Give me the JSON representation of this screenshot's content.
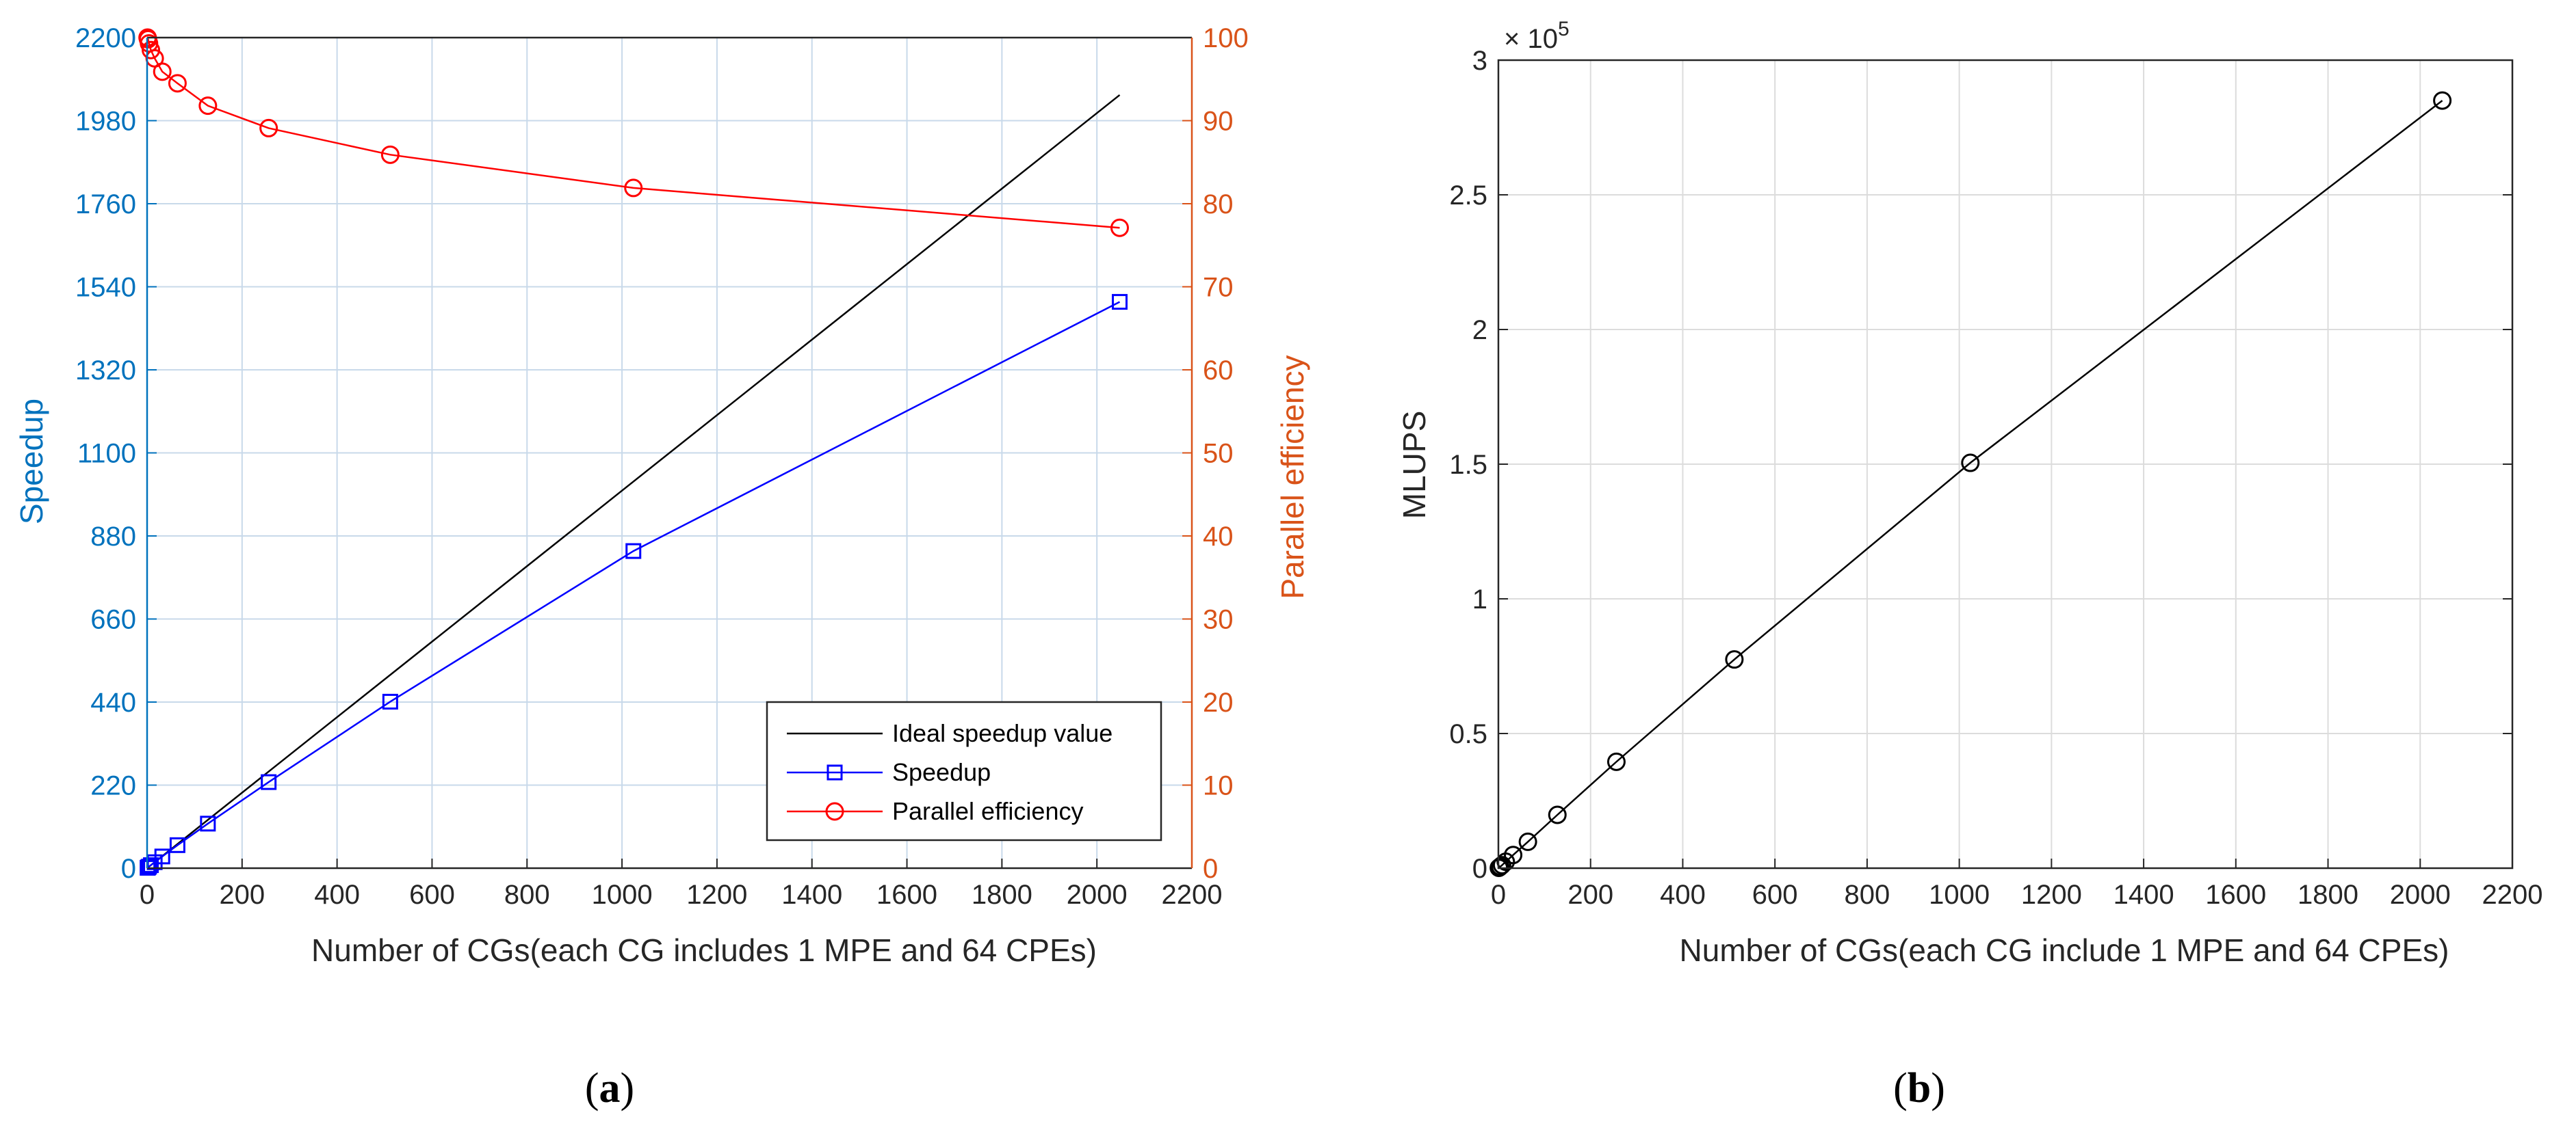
{
  "chart_data": [
    {
      "panel": "a",
      "type": "line",
      "panel_label_parts": [
        "(",
        "a",
        ")"
      ],
      "xlabel": "Number of CGs(each CG includes 1 MPE and 64 CPEs)",
      "ylabel": "Speedup",
      "y2label": "Parallel efficiency",
      "xlim": [
        0,
        2200
      ],
      "ylim": [
        0,
        2200
      ],
      "y2lim": [
        0,
        100
      ],
      "xticks": [
        0,
        200,
        400,
        600,
        800,
        1000,
        1200,
        1400,
        1600,
        1800,
        2000,
        2200
      ],
      "yticks": [
        0,
        220,
        440,
        660,
        880,
        1100,
        1320,
        1540,
        1760,
        1980,
        2200
      ],
      "y2ticks": [
        0,
        10,
        20,
        30,
        40,
        50,
        60,
        70,
        80,
        90,
        100
      ],
      "grid": true,
      "legend_position": "bottom-right",
      "series": [
        {
          "name": "Ideal speedup value",
          "axis": "left",
          "color": "#000000",
          "marker": "none",
          "x": [
            1,
            2048
          ],
          "y": [
            1,
            2048
          ]
        },
        {
          "name": "Speedup",
          "axis": "left",
          "color": "#0000ff",
          "marker": "square",
          "x": [
            1,
            2,
            4,
            8,
            16,
            32,
            64,
            128,
            256,
            512,
            1024,
            2048
          ],
          "y": [
            1,
            2,
            4,
            8,
            15.8,
            31,
            61,
            118,
            228,
            441,
            840,
            1500
          ]
        },
        {
          "name": "Parallel efficiency",
          "axis": "right",
          "color": "#ff0000",
          "marker": "circle",
          "x": [
            1,
            2,
            4,
            8,
            16,
            32,
            64,
            128,
            256,
            512,
            1024,
            2048
          ],
          "y": [
            100,
            99.8,
            99.3,
            98.5,
            97.5,
            95.9,
            94.5,
            91.8,
            89.1,
            85.9,
            81.9,
            77.1
          ]
        }
      ],
      "colors": {
        "left_axis": "#0072bd",
        "right_axis": "#d95319",
        "grid": "#c8d9ea"
      }
    },
    {
      "panel": "b",
      "type": "line",
      "panel_label_parts": [
        "(",
        "b",
        ")"
      ],
      "xlabel": "Number of CGs(each CG include 1 MPE and 64 CPEs)",
      "ylabel": "MLUPS",
      "xlim": [
        0,
        2200
      ],
      "ylim": [
        0,
        300000
      ],
      "xticks": [
        0,
        200,
        400,
        600,
        800,
        1000,
        1200,
        1400,
        1600,
        1800,
        2000,
        2200
      ],
      "yticks": [
        0,
        50000,
        100000,
        150000,
        200000,
        250000,
        300000
      ],
      "ytick_labels": [
        "0",
        "0.5",
        "1",
        "1.5",
        "2",
        "2.5",
        "3"
      ],
      "y_exponent_base": "× 10",
      "y_exponent_power": "5",
      "grid": true,
      "series": [
        {
          "name": "MLUPS",
          "color": "#000000",
          "marker": "circle",
          "x": [
            1,
            2,
            4,
            8,
            16,
            32,
            64,
            128,
            256,
            512,
            1024,
            2048
          ],
          "y": [
            140,
            280,
            560,
            1120,
            2400,
            4900,
            9800,
            19800,
            39500,
            77500,
            150500,
            285000
          ]
        }
      ],
      "colors": {
        "axis": "#262626",
        "grid": "#dcdcdc"
      }
    }
  ]
}
